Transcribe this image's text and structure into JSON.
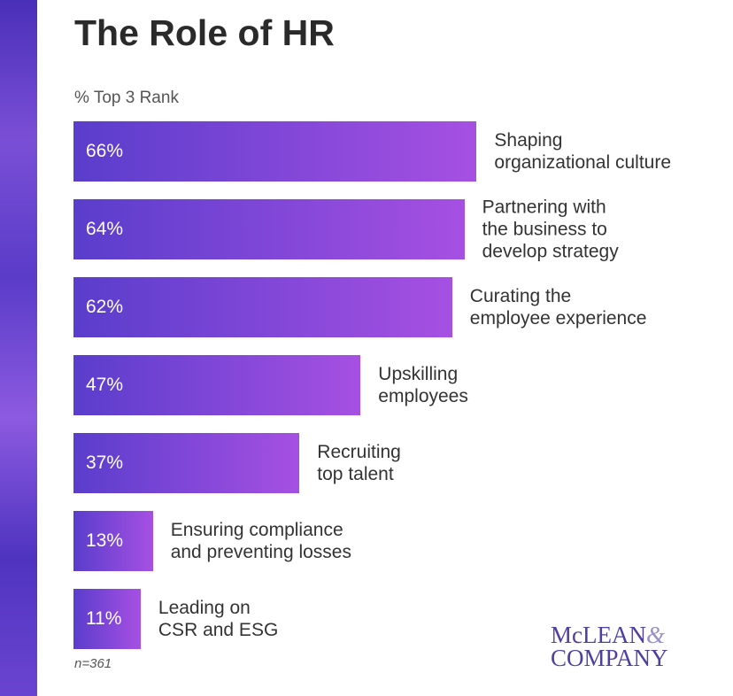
{
  "chart_data": {
    "type": "bar",
    "orientation": "horizontal",
    "title": "The Role of HR",
    "subtitle": "% Top 3 Rank",
    "categories": [
      "Shaping\norganizational culture",
      "Partnering with\nthe business to\ndevelop strategy",
      "Curating the\nemployee experience",
      "Upskilling\nemployees",
      "Recruiting\ntop talent",
      "Ensuring compliance\nand preventing losses",
      "Leading on\nCSR and ESG"
    ],
    "values": [
      66,
      64,
      62,
      47,
      37,
      13,
      11
    ],
    "value_labels": [
      "66%",
      "64%",
      "62%",
      "47%",
      "37%",
      "13%",
      "11%"
    ],
    "colors": [
      "#5a3dcc",
      "#a650e2"
    ],
    "footnote": "n=361"
  },
  "logo": {
    "line1": "McLEAN",
    "amp": "&",
    "line2": "COMPANY"
  }
}
